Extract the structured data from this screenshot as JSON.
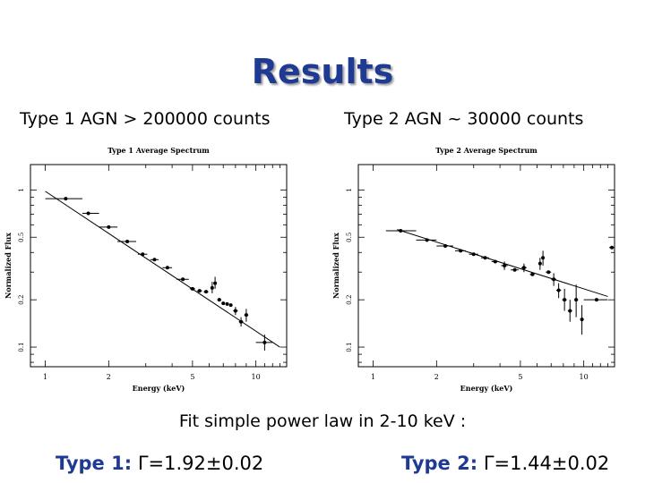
{
  "title": "Results",
  "subheads": {
    "type1": "Type 1 AGN > 200000 counts",
    "type2": "Type 2 AGN ~ 30000 counts"
  },
  "fit_text": "Fit simple power law in 2-10 keV :",
  "results": {
    "type1": {
      "label": "Type 1:",
      "value": "Γ=1.92±0.02"
    },
    "type2": {
      "label": "Type 2:",
      "value": "Γ=1.44±0.02"
    }
  },
  "colors": {
    "title": "#1f3a93",
    "label": "#1f3a93"
  },
  "chart_data": [
    {
      "type": "scatter",
      "title": "Type 1 Average Spectrum",
      "xlabel": "Energy (keV)",
      "ylabel": "Normalized Flux",
      "xscale": "log",
      "yscale": "log",
      "xlim": [
        0.85,
        14
      ],
      "ylim": [
        0.075,
        1.45
      ],
      "xticks": [
        1,
        2,
        5,
        10
      ],
      "yticks": [
        0.1,
        0.2,
        0.5,
        1
      ],
      "tick_labels_x": [
        "1",
        "2",
        "5",
        "10"
      ],
      "tick_labels_y": [
        "0.1",
        "0.2",
        "0.5",
        "1"
      ],
      "points": [
        {
          "x": 1.25,
          "y": 0.88,
          "xerr": [
            1.0,
            1.5
          ]
        },
        {
          "x": 1.6,
          "y": 0.71,
          "xerr": [
            1.5,
            1.8
          ]
        },
        {
          "x": 2.0,
          "y": 0.58,
          "xerr": [
            1.8,
            2.2
          ]
        },
        {
          "x": 2.45,
          "y": 0.47,
          "xerr": [
            2.2,
            2.7
          ]
        },
        {
          "x": 2.9,
          "y": 0.39,
          "xerr": [
            2.75,
            3.05
          ]
        },
        {
          "x": 3.3,
          "y": 0.36,
          "xerr": [
            3.15,
            3.45
          ]
        },
        {
          "x": 3.8,
          "y": 0.32,
          "xerr": [
            3.6,
            4.0
          ]
        },
        {
          "x": 4.5,
          "y": 0.27,
          "xerr": [
            4.2,
            4.8
          ]
        },
        {
          "x": 5.0,
          "y": 0.235,
          "xerr": [
            4.85,
            5.15
          ]
        },
        {
          "x": 5.4,
          "y": 0.228,
          "xerr": [
            5.25,
            5.55
          ]
        },
        {
          "x": 5.8,
          "y": 0.225,
          "xerr": [
            5.65,
            5.95
          ]
        },
        {
          "x": 6.2,
          "y": 0.238,
          "xerr": [
            6.1,
            6.3
          ],
          "yerr": [
            0.22,
            0.26
          ]
        },
        {
          "x": 6.4,
          "y": 0.255,
          "xerr": [
            6.35,
            6.45
          ],
          "yerr": [
            0.235,
            0.28
          ]
        },
        {
          "x": 6.7,
          "y": 0.2,
          "xerr": [
            6.55,
            6.85
          ]
        },
        {
          "x": 7.0,
          "y": 0.19,
          "xerr": [
            6.9,
            7.1
          ]
        },
        {
          "x": 7.3,
          "y": 0.188,
          "xerr": [
            7.2,
            7.4
          ]
        },
        {
          "x": 7.6,
          "y": 0.185,
          "xerr": [
            7.5,
            7.7
          ]
        },
        {
          "x": 8.0,
          "y": 0.17,
          "xerr": [
            7.8,
            8.2
          ],
          "yerr": [
            0.16,
            0.18
          ]
        },
        {
          "x": 8.5,
          "y": 0.145,
          "xerr": [
            8.3,
            8.7
          ],
          "yerr": [
            0.135,
            0.155
          ]
        },
        {
          "x": 9.0,
          "y": 0.16,
          "xerr": [
            8.8,
            9.2
          ],
          "yerr": [
            0.145,
            0.175
          ]
        },
        {
          "x": 11.0,
          "y": 0.107,
          "xerr": [
            10.0,
            12.0
          ],
          "yerr": [
            0.095,
            0.12
          ]
        }
      ],
      "model_line": {
        "x": [
          1.0,
          13.0
        ],
        "y": [
          0.98,
          0.1
        ]
      }
    },
    {
      "type": "scatter",
      "title": "Type 2 Average Spectrum",
      "xlabel": "Energy (keV)",
      "ylabel": "Normalized Flux",
      "xscale": "log",
      "yscale": "log",
      "xlim": [
        0.85,
        14
      ],
      "ylim": [
        0.075,
        1.45
      ],
      "xticks": [
        1,
        2,
        5,
        10
      ],
      "yticks": [
        0.1,
        0.2,
        0.5,
        1
      ],
      "tick_labels_x": [
        "1",
        "2",
        "5",
        "10"
      ],
      "tick_labels_y": [
        "0.1",
        "0.2",
        "0.5",
        "1"
      ],
      "points": [
        {
          "x": 1.35,
          "y": 0.55,
          "xerr": [
            1.15,
            1.6
          ]
        },
        {
          "x": 1.8,
          "y": 0.48,
          "xerr": [
            1.6,
            2.0
          ]
        },
        {
          "x": 2.2,
          "y": 0.44,
          "xerr": [
            2.0,
            2.4
          ]
        },
        {
          "x": 2.6,
          "y": 0.41,
          "xerr": [
            2.45,
            2.75
          ]
        },
        {
          "x": 3.0,
          "y": 0.39,
          "xerr": [
            2.85,
            3.15
          ]
        },
        {
          "x": 3.4,
          "y": 0.37,
          "xerr": [
            3.25,
            3.55
          ]
        },
        {
          "x": 3.8,
          "y": 0.35,
          "xerr": [
            3.65,
            3.95
          ]
        },
        {
          "x": 4.2,
          "y": 0.33,
          "xerr": [
            4.05,
            4.35
          ],
          "yerr": [
            0.31,
            0.35
          ]
        },
        {
          "x": 4.7,
          "y": 0.31,
          "xerr": [
            4.5,
            4.9
          ]
        },
        {
          "x": 5.2,
          "y": 0.32,
          "xerr": [
            5.05,
            5.35
          ],
          "yerr": [
            0.3,
            0.34
          ]
        },
        {
          "x": 5.7,
          "y": 0.29,
          "xerr": [
            5.55,
            5.85
          ]
        },
        {
          "x": 6.2,
          "y": 0.34,
          "xerr": [
            6.1,
            6.3
          ],
          "yerr": [
            0.31,
            0.37
          ]
        },
        {
          "x": 6.4,
          "y": 0.37,
          "xerr": [
            6.35,
            6.45
          ],
          "yerr": [
            0.33,
            0.41
          ]
        },
        {
          "x": 6.8,
          "y": 0.3,
          "xerr": [
            6.6,
            7.0
          ]
        },
        {
          "x": 7.2,
          "y": 0.27,
          "xerr": [
            7.0,
            7.4
          ],
          "yerr": [
            0.245,
            0.295
          ]
        },
        {
          "x": 7.6,
          "y": 0.23,
          "xerr": [
            7.4,
            7.8
          ],
          "yerr": [
            0.205,
            0.255
          ]
        },
        {
          "x": 8.1,
          "y": 0.2,
          "xerr": [
            7.9,
            8.3
          ],
          "yerr": [
            0.17,
            0.235
          ]
        },
        {
          "x": 8.6,
          "y": 0.17,
          "xerr": [
            8.4,
            8.8
          ],
          "yerr": [
            0.145,
            0.2
          ]
        },
        {
          "x": 9.2,
          "y": 0.2,
          "xerr": [
            9.0,
            9.4
          ],
          "yerr": [
            0.155,
            0.25
          ]
        },
        {
          "x": 9.8,
          "y": 0.15,
          "xerr": [
            9.6,
            10.0
          ],
          "yerr": [
            0.12,
            0.185
          ]
        },
        {
          "x": 11.5,
          "y": 0.2,
          "xerr": [
            10.0,
            13.0
          ]
        },
        {
          "x": 13.6,
          "y": 0.43,
          "xerr": [
            13.2,
            14.0
          ]
        }
      ],
      "model_line": {
        "x": [
          1.3,
          13.0
        ],
        "y": [
          0.56,
          0.21
        ]
      }
    }
  ]
}
